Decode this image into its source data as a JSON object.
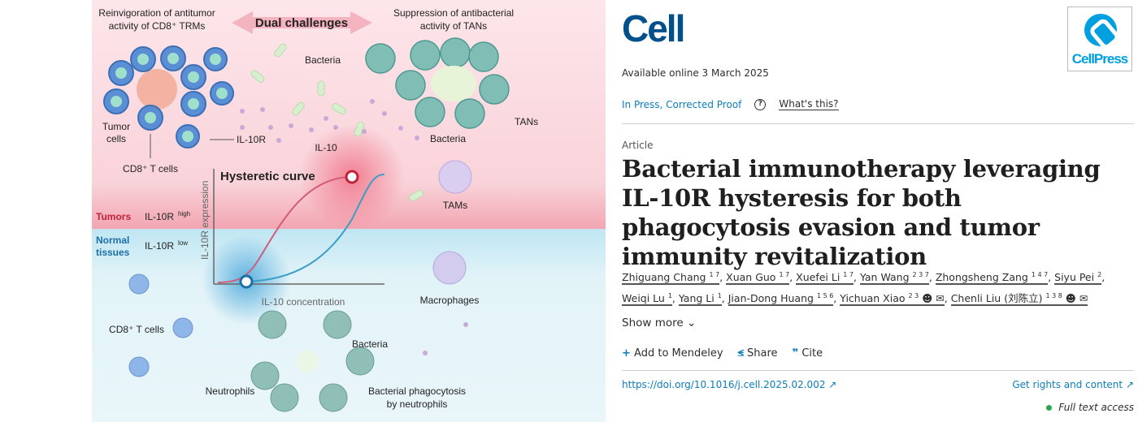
{
  "figure": {
    "top_left_title": [
      "Reinvigoration of antitumor",
      "activity of CD8⁺ TRMs"
    ],
    "center_title": "Dual challenges",
    "top_right_title": [
      "Suppression of antibacterial",
      "activity of TANs"
    ],
    "labels": {
      "bacteria_top": "Bacteria",
      "tumor_cells": [
        "Tumor",
        "cells"
      ],
      "il10r": "IL-10R",
      "il10": "IL-10",
      "cd8_tcells_top": "CD8⁺ T cells",
      "bacteria_tans": "Bacteria",
      "tans": "TANs",
      "tams": "TAMs",
      "hysteretic_curve": "Hysteretic curve",
      "tumors": "Tumors",
      "il10r_high": "IL-10R",
      "high_sup": "high",
      "normal_tissues": [
        "Normal",
        "tissues"
      ],
      "il10r_low": "IL-10R",
      "low_sup": "low",
      "y_axis": "IL-10R expression",
      "x_axis": "IL-10 concentration",
      "macrophages": "Macrophages",
      "cd8_tcells_bottom": "CD8⁺ T cells",
      "bacteria_bottom": "Bacteria",
      "neutrophils": "Neutrophils",
      "phagocytosis": [
        "Bacterial phagocytosis",
        "by neutrophils"
      ]
    },
    "colors": {
      "top_bg": "#fbdde3",
      "bottom_bg": "#dff2f7",
      "tumor_red": "#c0223a",
      "normal_blue": "#1c6fa8"
    }
  },
  "journal": {
    "logo": "Cell",
    "publisher_logo": "CellPress"
  },
  "available_online": "Available online 3 March 2025",
  "status": "In Press, Corrected Proof",
  "help_icon": "question-circle-icon",
  "whats_this": "What's this?",
  "article_type": "Article",
  "title": "Bacterial immunotherapy leveraging IL-10R hysteresis for both phagocytosis evasion and tumor immunity revitalization",
  "authors": [
    {
      "name": "Zhiguang Chang",
      "aff": "1 7"
    },
    {
      "name": "Xuan Guo",
      "aff": "1 7"
    },
    {
      "name": "Xuefei Li",
      "aff": "1 7"
    },
    {
      "name": "Yan Wang",
      "aff": "2 3 7"
    },
    {
      "name": "Zhongsheng Zang",
      "aff": "1 4 7"
    },
    {
      "name": "Siyu Pei",
      "aff": "2"
    },
    {
      "name": "Weiqi Lu",
      "aff": "1"
    },
    {
      "name": "Yang Li",
      "aff": "1"
    },
    {
      "name": "Jian-Dong Huang",
      "aff": "1 5 6"
    },
    {
      "name": "Yichuan Xiao",
      "aff": "2 3",
      "icons": true
    },
    {
      "name": "Chenli Liu (刘陈立)",
      "aff": "1 3 8",
      "icons": true
    }
  ],
  "show_more": "Show more",
  "actions": {
    "mendeley": "Add to Mendeley",
    "share": "Share",
    "cite": "Cite"
  },
  "doi": "https://doi.org/10.1016/j.cell.2025.02.002",
  "rights": "Get rights and content",
  "access": "Full text access",
  "access_color": "#2ca44c"
}
